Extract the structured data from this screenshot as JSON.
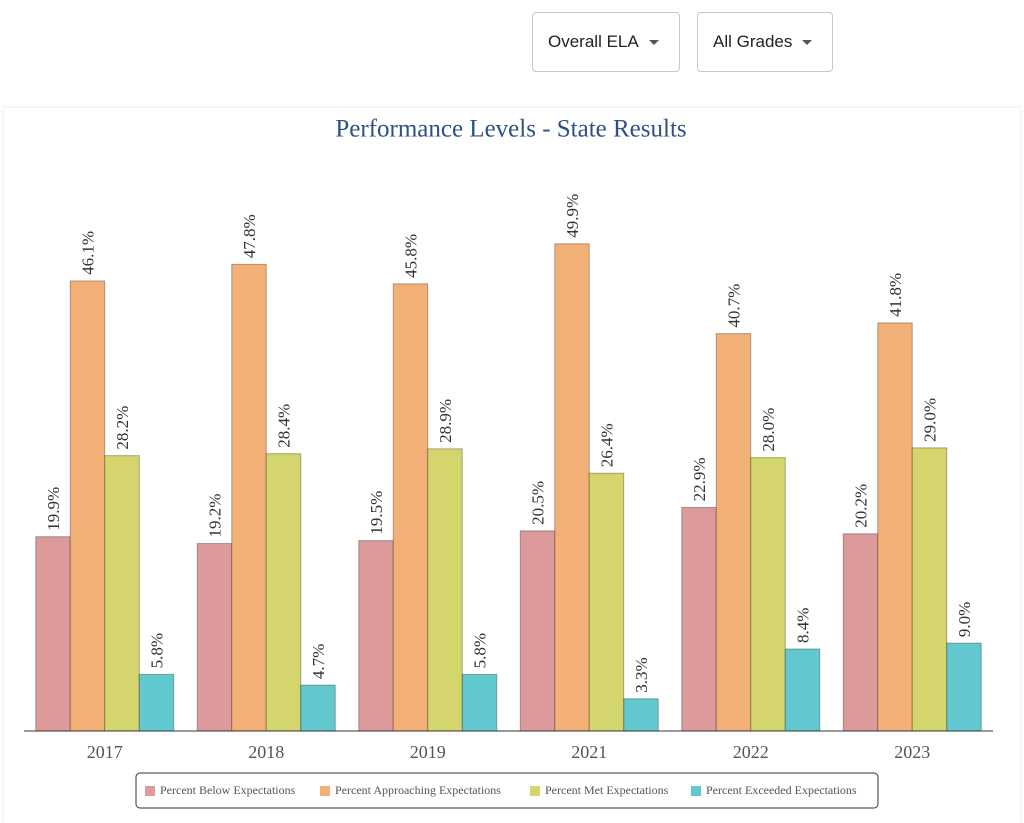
{
  "controls": {
    "subject": "Overall ELA",
    "grade": "All Grades"
  },
  "chart_data": {
    "type": "bar",
    "title": "Performance Levels - State Results",
    "categories": [
      "2017",
      "2018",
      "2019",
      "2021",
      "2022",
      "2023"
    ],
    "ylim": [
      0,
      55
    ],
    "series": [
      {
        "name": "Percent Below Expectations",
        "color": "#dc9a9a",
        "values": [
          19.9,
          19.2,
          19.5,
          20.5,
          22.9,
          20.2
        ],
        "value_labels": [
          "19.9%",
          "19.2%",
          "19.5%",
          "20.5%",
          "22.9%",
          "20.2%"
        ]
      },
      {
        "name": "Percent Approaching Expectations",
        "color": "#f2b077",
        "values": [
          46.1,
          47.8,
          45.8,
          49.9,
          40.7,
          41.8
        ],
        "value_labels": [
          "46.1%",
          "47.8%",
          "45.8%",
          "49.9%",
          "40.7%",
          "41.8%"
        ]
      },
      {
        "name": "Percent Met Expectations",
        "color": "#d4d56c",
        "values": [
          28.2,
          28.4,
          28.9,
          26.4,
          28.0,
          29.0
        ],
        "value_labels": [
          "28.2%",
          "28.4%",
          "28.9%",
          "26.4%",
          "28.0%",
          "29.0%"
        ]
      },
      {
        "name": "Percent Exceeded Expectations",
        "color": "#62c8d0",
        "values": [
          5.8,
          4.7,
          5.8,
          3.3,
          8.4,
          9.0
        ],
        "value_labels": [
          "5.8%",
          "4.7%",
          "5.8%",
          "3.3%",
          "8.4%",
          "9.0%"
        ]
      }
    ]
  }
}
